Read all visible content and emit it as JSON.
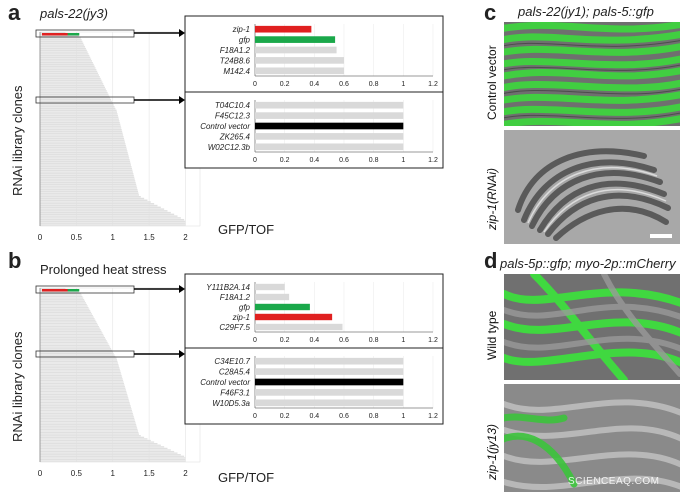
{
  "panels": {
    "a": {
      "letter": "a",
      "title": "pals-22(jy3)"
    },
    "b": {
      "letter": "b",
      "title": "Prolonged heat stress"
    },
    "c": {
      "letter": "c",
      "title": "pals-22(jy1); pals-5::gfp",
      "top_label": "Control vector",
      "bottom_label": "zip-1(RNAi)"
    },
    "d": {
      "letter": "d",
      "title": "pals-5p::gfp; myo-2p::mCherry",
      "top_label": "Wild type",
      "bottom_label": "zip-1(jy13)"
    }
  },
  "axis_text": {
    "ylabel": "RNAi library clones",
    "xlabel": "GFP/TOF"
  },
  "colors": {
    "red": "#e02020",
    "green": "#1aa84a",
    "black": "#000000",
    "grey": "#d9d9d9",
    "gfp": "#33cc33"
  },
  "watermark": "SCIENCEAQ.COM",
  "chart_data": [
    {
      "id": "a-main",
      "type": "bar",
      "orientation": "horizontal",
      "xlabel": "GFP/TOF",
      "ylabel": "RNAi library clones",
      "xticks": [
        "0",
        "0.5",
        "1",
        "1.5",
        "2"
      ],
      "xlim": [
        0,
        2.2
      ]
    },
    {
      "id": "a-inset-top",
      "type": "bar",
      "orientation": "horizontal",
      "categories": [
        "zip-1",
        "gfp",
        "F18A1.2",
        "T24B8.6",
        "M142.4"
      ],
      "values": [
        0.38,
        0.54,
        0.55,
        0.6,
        0.6
      ],
      "bar_colors": [
        "red",
        "green",
        "grey",
        "grey",
        "grey"
      ],
      "xticks": [
        "0",
        "0.2",
        "0.4",
        "0.6",
        "0.8",
        "1",
        "1.2"
      ],
      "xlim": [
        0,
        1.2
      ]
    },
    {
      "id": "a-inset-bottom",
      "type": "bar",
      "orientation": "horizontal",
      "categories": [
        "T04C10.4",
        "F45C12.3",
        "Control vector",
        "ZK265.4",
        "W02C12.3b"
      ],
      "values": [
        1.0,
        1.0,
        1.0,
        1.0,
        1.0
      ],
      "bar_colors": [
        "grey",
        "grey",
        "black",
        "grey",
        "grey"
      ],
      "xticks": [
        "0",
        "0.2",
        "0.4",
        "0.6",
        "0.8",
        "1",
        "1.2"
      ],
      "xlim": [
        0,
        1.2
      ]
    },
    {
      "id": "b-main",
      "type": "bar",
      "orientation": "horizontal",
      "xlabel": "GFP/TOF",
      "ylabel": "RNAi library clones",
      "xticks": [
        "0",
        "0.5",
        "1",
        "1.5",
        "2"
      ],
      "xlim": [
        0,
        2.2
      ]
    },
    {
      "id": "b-inset-top",
      "type": "bar",
      "orientation": "horizontal",
      "categories": [
        "Y111B2A.14",
        "F18A1.2",
        "gfp",
        "zip-1",
        "C29F7.5"
      ],
      "values": [
        0.2,
        0.23,
        0.37,
        0.52,
        0.59
      ],
      "bar_colors": [
        "grey",
        "grey",
        "green",
        "red",
        "grey"
      ],
      "xticks": [
        "0",
        "0.2",
        "0.4",
        "0.6",
        "0.8",
        "1",
        "1.2"
      ],
      "xlim": [
        0,
        1.2
      ]
    },
    {
      "id": "b-inset-bottom",
      "type": "bar",
      "orientation": "horizontal",
      "categories": [
        "C34E10.7",
        "C28A5.4",
        "Control vector",
        "F46F3.1",
        "W10D5.3a"
      ],
      "values": [
        1.0,
        1.0,
        1.0,
        1.0,
        1.0
      ],
      "bar_colors": [
        "grey",
        "grey",
        "black",
        "grey",
        "grey"
      ],
      "xticks": [
        "0",
        "0.2",
        "0.4",
        "0.6",
        "0.8",
        "1",
        "1.2"
      ],
      "xlim": [
        0,
        1.2
      ]
    }
  ]
}
